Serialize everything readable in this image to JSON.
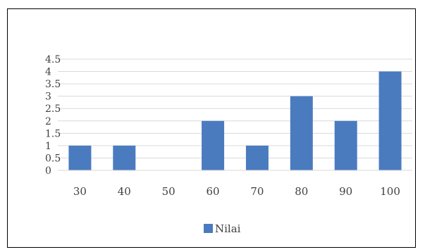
{
  "chart_data": {
    "type": "bar",
    "categories": [
      "30",
      "40",
      "50",
      "60",
      "70",
      "80",
      "90",
      "100"
    ],
    "series": [
      {
        "name": "Nilai",
        "values": [
          1,
          1,
          0,
          2,
          1,
          3,
          2,
          4
        ]
      }
    ],
    "ylim": [
      0,
      4.5
    ],
    "yticks": [
      "0",
      "0.5",
      "1",
      "1.5",
      "2",
      "2.5",
      "3",
      "3.5",
      "4",
      "4.5"
    ],
    "grid": true,
    "legend_position": "bottom",
    "colors": {
      "bar": "#4a7bbf",
      "grid": "#d9d9d9",
      "text": "#404040"
    }
  }
}
